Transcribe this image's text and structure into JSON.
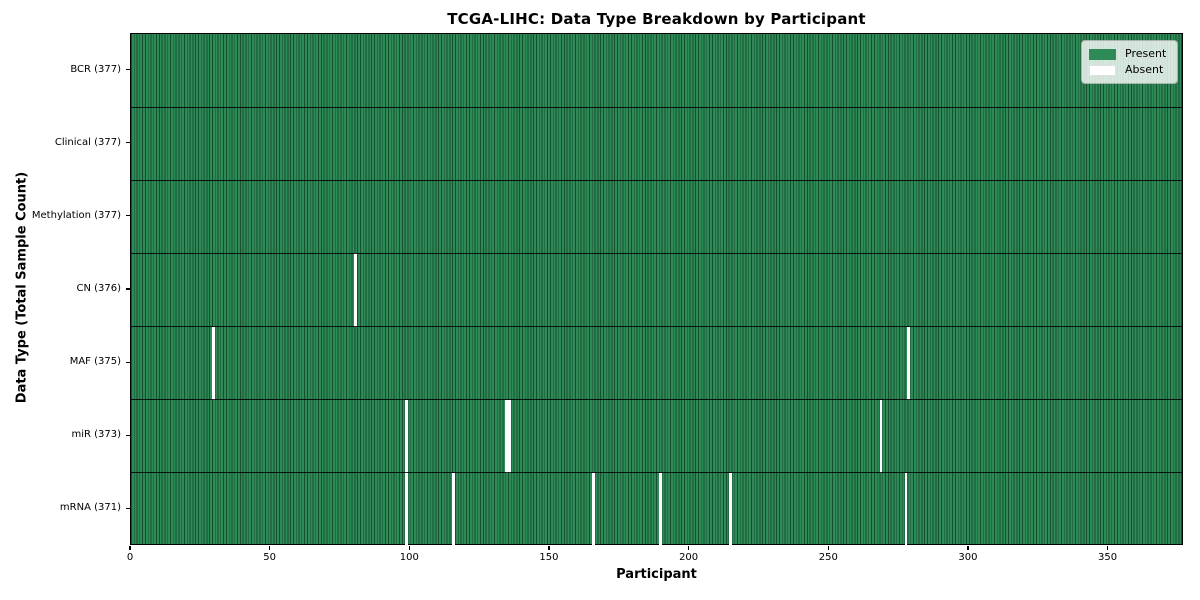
{
  "figure": {
    "title": "TCGA-LIHC: Data Type Breakdown by Participant"
  },
  "legend": {
    "items": [
      {
        "label": "Present",
        "color": "#2e8b57"
      },
      {
        "label": "Absent",
        "color": "#ffffff"
      }
    ]
  },
  "colors": {
    "present": "#2e8b57",
    "present_cell_edge": "#14452b",
    "absent": "#ffffff",
    "row_divider": "#000000",
    "axis_spine": "#000000",
    "legend_background": "rgba(255,255,255,0.8)"
  },
  "chart_data": {
    "type": "heatmap",
    "title": "TCGA-LIHC: Data Type Breakdown by Participant",
    "xlabel": "Participant",
    "ylabel": "Data Type (Total Sample Count)",
    "x_ticks": [
      0,
      50,
      100,
      150,
      200,
      250,
      300,
      350
    ],
    "x_range": [
      0,
      377
    ],
    "n_participants": 377,
    "grid": false,
    "legend": [
      "Present",
      "Absent"
    ],
    "legend_position": "upper right",
    "value_encoding": {
      "present": 1,
      "absent": 0
    },
    "rows": [
      {
        "label": "BCR (377)",
        "data_type": "BCR",
        "present_count": 377,
        "absent_participants": []
      },
      {
        "label": "Clinical (377)",
        "data_type": "Clinical",
        "present_count": 377,
        "absent_participants": []
      },
      {
        "label": "Methylation (377)",
        "data_type": "Methylation",
        "present_count": 377,
        "absent_participants": []
      },
      {
        "label": "CN (376)",
        "data_type": "CN",
        "present_count": 376,
        "absent_participants": [
          80
        ]
      },
      {
        "label": "MAF (375)",
        "data_type": "MAF",
        "present_count": 375,
        "absent_participants": [
          29,
          278
        ]
      },
      {
        "label": "miR (373)",
        "data_type": "miR",
        "present_count": 373,
        "absent_participants": [
          98,
          134,
          135,
          268
        ]
      },
      {
        "label": "mRNA (371)",
        "data_type": "mRNA",
        "present_count": 371,
        "absent_participants": [
          98,
          115,
          165,
          189,
          214,
          277
        ]
      }
    ]
  }
}
